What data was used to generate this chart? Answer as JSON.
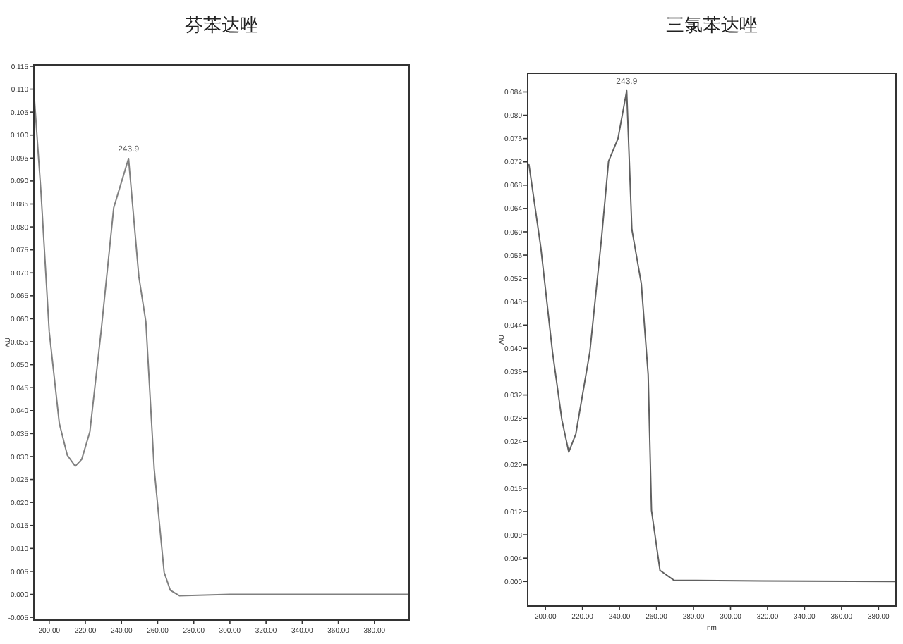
{
  "chart_data": [
    {
      "type": "line",
      "title": "芬苯达唑",
      "ylabel": "AU",
      "annotations": [
        {
          "text": "243.9",
          "x": 243.9,
          "y": 0.0949
        }
      ],
      "series": [
        {
          "color": "#808080",
          "x": [
            191.5,
            195.5,
            200,
            205.6,
            210,
            214.4,
            218,
            222.5,
            228.7,
            235.7,
            240.3,
            243.9,
            249.6,
            253.5,
            258.1,
            263.6,
            267,
            272,
            300,
            350,
            399
          ],
          "values": [
            0.1096,
            0.0872,
            0.0572,
            0.0372,
            0.0303,
            0.0279,
            0.0294,
            0.0354,
            0.0572,
            0.0842,
            0.0902,
            0.0949,
            0.0692,
            0.0593,
            0.0273,
            0.0048,
            0.0009,
            -0.0003,
            0.0,
            0.0,
            0.0
          ]
        }
      ],
      "xlim": [
        191.5,
        399.2
      ],
      "ylim": [
        -0.0056,
        0.1153
      ],
      "xticks": [
        {
          "value": 200,
          "label": "200.00"
        },
        {
          "value": 220,
          "label": "220.00"
        },
        {
          "value": 240,
          "label": "240.00"
        },
        {
          "value": 260,
          "label": "260.00"
        },
        {
          "value": 280,
          "label": "280.00"
        },
        {
          "value": 300,
          "label": "300.00"
        },
        {
          "value": 320,
          "label": "320.00"
        },
        {
          "value": 340,
          "label": "340.00"
        },
        {
          "value": 360,
          "label": "360.00"
        },
        {
          "value": 380,
          "label": "380.00"
        }
      ],
      "yticks": [
        {
          "value": 0.115,
          "label": "0.115"
        },
        {
          "value": 0.11,
          "label": "0.110"
        },
        {
          "value": 0.105,
          "label": "0.105"
        },
        {
          "value": 0.1,
          "label": "0.100"
        },
        {
          "value": 0.095,
          "label": "0.095"
        },
        {
          "value": 0.09,
          "label": "0.090"
        },
        {
          "value": 0.085,
          "label": "0.085"
        },
        {
          "value": 0.08,
          "label": "0.080"
        },
        {
          "value": 0.075,
          "label": "0.075"
        },
        {
          "value": 0.07,
          "label": "0.070"
        },
        {
          "value": 0.065,
          "label": "0.065"
        },
        {
          "value": 0.06,
          "label": "0.060"
        },
        {
          "value": 0.055,
          "label": "0.055"
        },
        {
          "value": 0.05,
          "label": "0.050"
        },
        {
          "value": 0.045,
          "label": "0.045"
        },
        {
          "value": 0.04,
          "label": "0.040"
        },
        {
          "value": 0.035,
          "label": "0.035"
        },
        {
          "value": 0.03,
          "label": "0.030"
        },
        {
          "value": 0.025,
          "label": "0.025"
        },
        {
          "value": 0.02,
          "label": "0.020"
        },
        {
          "value": 0.015,
          "label": "0.015"
        },
        {
          "value": 0.01,
          "label": "0.010"
        },
        {
          "value": 0.005,
          "label": "0.005"
        },
        {
          "value": 0,
          "label": "0.000"
        },
        {
          "value": -0.005,
          "label": "-0.005"
        }
      ],
      "grid": false,
      "marker": "none",
      "line_style": "solid"
    },
    {
      "type": "line",
      "title": "三氯苯达唑",
      "ylabel": "AU",
      "xlabel": "nm",
      "annotations": [
        {
          "text": "243.9",
          "x": 243.9,
          "y": 0.0842
        }
      ],
      "series": [
        {
          "color": "#606060",
          "x": [
            191.1,
            197.5,
            203.8,
            208.9,
            212.6,
            216.4,
            224,
            230.3,
            234.1,
            239.2,
            243.9,
            246.7,
            251.8,
            255.5,
            257.3,
            261.9,
            269.5,
            317,
            389.4
          ],
          "values": [
            0.0715,
            0.0573,
            0.0394,
            0.0277,
            0.0222,
            0.0253,
            0.0394,
            0.0589,
            0.0721,
            0.076,
            0.0842,
            0.0604,
            0.0511,
            0.0355,
            0.0122,
            0.0019,
            0.0002,
            0.0001,
            0.0
          ]
        }
      ],
      "xlim": [
        190.4,
        389.4
      ],
      "ylim": [
        -0.0042,
        0.0872
      ],
      "xticks": [
        {
          "value": 200,
          "label": "200.00"
        },
        {
          "value": 220,
          "label": "220.00"
        },
        {
          "value": 240,
          "label": "240.00"
        },
        {
          "value": 260,
          "label": "260.00"
        },
        {
          "value": 280,
          "label": "280.00"
        },
        {
          "value": 300,
          "label": "300.00"
        },
        {
          "value": 320,
          "label": "320.00"
        },
        {
          "value": 340,
          "label": "340.00"
        },
        {
          "value": 360,
          "label": "360.00"
        },
        {
          "value": 380,
          "label": "380.00"
        }
      ],
      "yticks": [
        {
          "value": 0.084,
          "label": "0.084"
        },
        {
          "value": 0.08,
          "label": "0.080"
        },
        {
          "value": 0.076,
          "label": "0.076"
        },
        {
          "value": 0.072,
          "label": "0.072"
        },
        {
          "value": 0.068,
          "label": "0.068"
        },
        {
          "value": 0.064,
          "label": "0.064"
        },
        {
          "value": 0.06,
          "label": "0.060"
        },
        {
          "value": 0.056,
          "label": "0.056"
        },
        {
          "value": 0.052,
          "label": "0.052"
        },
        {
          "value": 0.048,
          "label": "0.048"
        },
        {
          "value": 0.044,
          "label": "0.044"
        },
        {
          "value": 0.04,
          "label": "0.040"
        },
        {
          "value": 0.036,
          "label": "0.036"
        },
        {
          "value": 0.032,
          "label": "0.032"
        },
        {
          "value": 0.028,
          "label": "0.028"
        },
        {
          "value": 0.024,
          "label": "0.024"
        },
        {
          "value": 0.02,
          "label": "0.020"
        },
        {
          "value": 0.016,
          "label": "0.016"
        },
        {
          "value": 0.012,
          "label": "0.012"
        },
        {
          "value": 0.008,
          "label": "0.008"
        },
        {
          "value": 0.004,
          "label": "0.004"
        },
        {
          "value": 0,
          "label": "0.000"
        }
      ],
      "grid": false,
      "marker": "none",
      "line_style": "solid"
    }
  ]
}
